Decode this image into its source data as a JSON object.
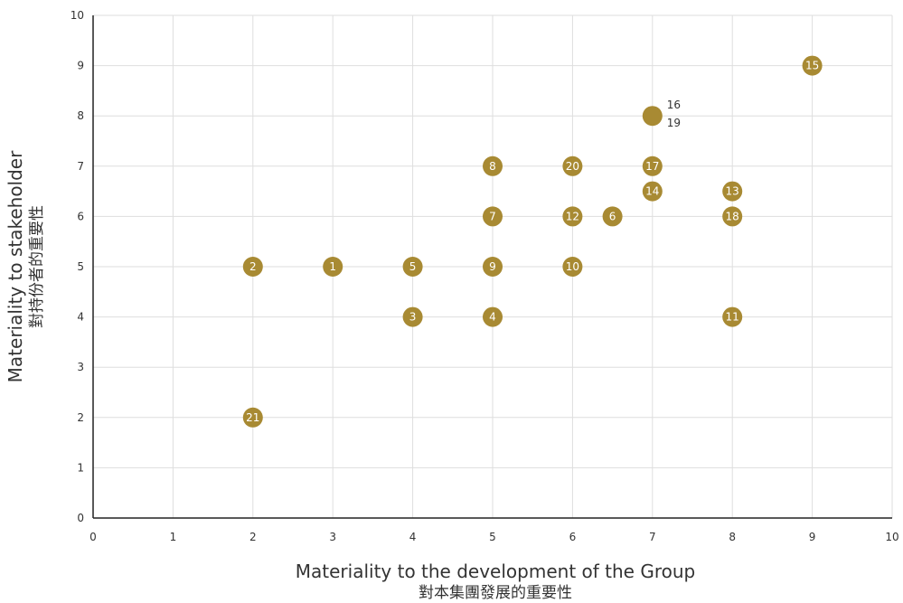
{
  "chart_data": {
    "type": "scatter",
    "xlabel": "Materiality to the development of the Group",
    "xlabel_cn": "對本集團發展的重要性",
    "ylabel": "Materiality to stakeholder",
    "ylabel_cn": "對持份者的重要性",
    "xlim": [
      0,
      10
    ],
    "ylim": [
      0,
      10
    ],
    "x_ticks": [
      "0",
      "1",
      "2",
      "3",
      "4",
      "5",
      "6",
      "7",
      "8",
      "9",
      "10"
    ],
    "y_ticks": [
      "0",
      "1",
      "2",
      "3",
      "4",
      "5",
      "6",
      "7",
      "8",
      "9",
      "10"
    ],
    "grid": true,
    "marker_color": "#A88A33",
    "points": [
      {
        "label": "1",
        "x": 3,
        "y": 5
      },
      {
        "label": "2",
        "x": 2,
        "y": 5
      },
      {
        "label": "3",
        "x": 4,
        "y": 4
      },
      {
        "label": "4",
        "x": 5,
        "y": 4
      },
      {
        "label": "5",
        "x": 4,
        "y": 5
      },
      {
        "label": "6",
        "x": 6.5,
        "y": 6
      },
      {
        "label": "7",
        "x": 5,
        "y": 6
      },
      {
        "label": "8",
        "x": 5,
        "y": 7
      },
      {
        "label": "9",
        "x": 5,
        "y": 5
      },
      {
        "label": "10",
        "x": 6,
        "y": 5
      },
      {
        "label": "11",
        "x": 8,
        "y": 4
      },
      {
        "label": "12",
        "x": 6,
        "y": 6
      },
      {
        "label": "13",
        "x": 8,
        "y": 6.5
      },
      {
        "label": "14",
        "x": 7,
        "y": 6.5
      },
      {
        "label": "15",
        "x": 9,
        "y": 9
      },
      {
        "label": "16",
        "x": 7,
        "y": 8,
        "outside": "above"
      },
      {
        "label": "17",
        "x": 7,
        "y": 7
      },
      {
        "label": "18",
        "x": 8,
        "y": 6
      },
      {
        "label": "19",
        "x": 7,
        "y": 8,
        "outside": "below"
      },
      {
        "label": "20",
        "x": 6,
        "y": 7
      },
      {
        "label": "21",
        "x": 2,
        "y": 2
      }
    ]
  }
}
